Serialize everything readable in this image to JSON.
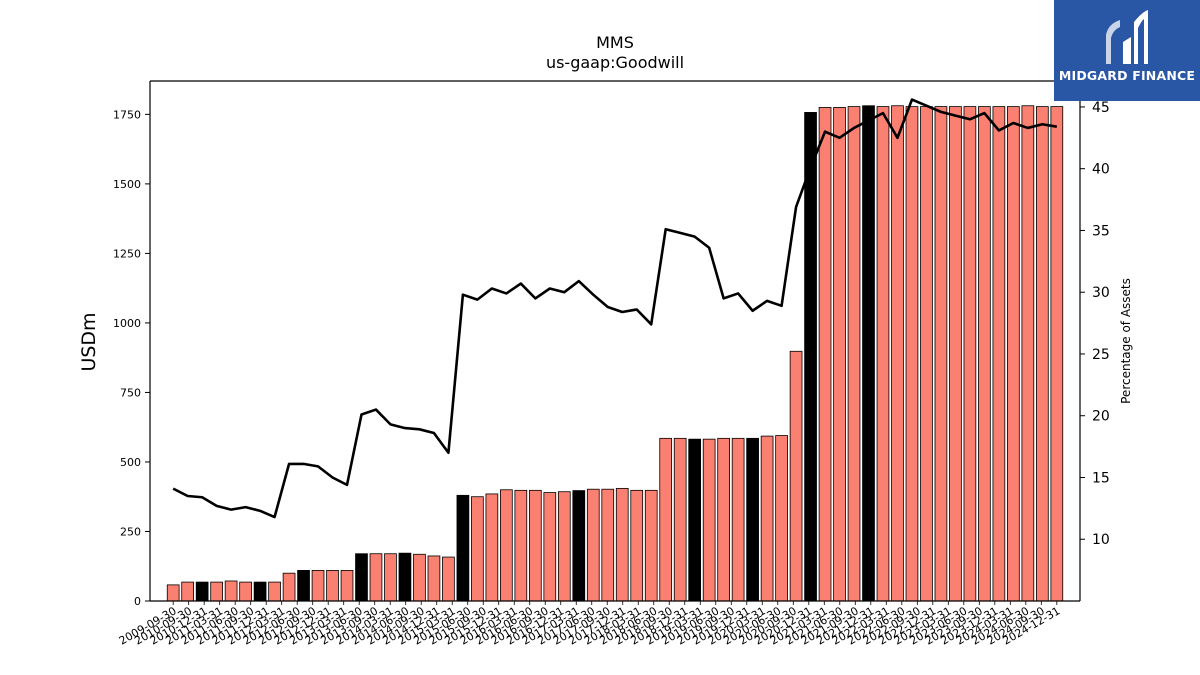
{
  "logo": {
    "text": "MIDGARD FINANCE",
    "bg_color": "#2a56a6"
  },
  "colors": {
    "bar_normal": "#fa8072",
    "bar_highlight": "#000000",
    "line": "#000000"
  },
  "chart_data": {
    "type": "bar",
    "title": "MMS",
    "subtitle": "us-gaap:Goodwill",
    "ylabel": "USDm",
    "y2label": "Percentage of Assets",
    "ylim": [
      0,
      1870
    ],
    "y2lim": [
      5.0,
      47.1
    ],
    "yticks": [
      0,
      250,
      500,
      750,
      1000,
      1250,
      1500,
      1750
    ],
    "y2ticks": [
      10,
      15,
      20,
      25,
      30,
      35,
      40,
      45
    ],
    "grid": false,
    "categories": [
      "2009-09-30",
      "2009-12-31",
      "2010-03-31",
      "2010-06-30",
      "2010-09-30",
      "2010-12-31",
      "2011-03-31",
      "2011-06-30",
      "2011-09-30",
      "2011-12-31",
      "2012-03-31",
      "2012-06-30",
      "2012-09-30",
      "2012-12-31",
      "2013-03-31",
      "2013-06-30",
      "2013-09-30",
      "2013-12-31",
      "2014-03-31",
      "2014-06-30",
      "2014-09-30",
      "2014-12-31",
      "2015-03-31",
      "2015-06-30",
      "2015-09-30",
      "2015-12-31",
      "2016-03-31",
      "2016-06-30",
      "2016-09-30",
      "2016-12-31",
      "2017-03-31",
      "2017-06-30",
      "2017-09-30",
      "2017-12-31",
      "2018-03-31",
      "2018-06-30",
      "2018-09-30",
      "2018-12-31",
      "2019-03-31",
      "2019-06-30",
      "2019-09-30",
      "2019-12-31",
      "2020-03-31",
      "2020-06-30",
      "2020-09-30",
      "2020-12-31",
      "2021-03-31",
      "2021-06-30",
      "2021-09-30",
      "2021-12-31",
      "2022-03-31",
      "2022-06-30",
      "2022-09-30",
      "2022-12-31",
      "2023-03-31",
      "2023-06-30",
      "2023-09-30",
      "2023-12-31",
      "2024-03-31",
      "2024-06-30",
      "2024-09-30",
      "2024-12-31"
    ],
    "xtick_labels": [
      "2009-09-30",
      "2010-09-30",
      "2010-12-31",
      "2011-03-31",
      "2011-06-30",
      "2011-09-30",
      "2011-12-31",
      "2012-03-31",
      "2012-06-30",
      "2012-09-30",
      "2012-12-31",
      "2013-03-31",
      "2013-06-30",
      "2013-09-30",
      "2014-03-31",
      "2014-06-30",
      "2014-09-30",
      "2014-12-31",
      "2015-03-31",
      "2015-06-30",
      "2015-09-30",
      "2015-12-31",
      "2016-03-31",
      "2016-06-30",
      "2016-09-30",
      "2016-12-31",
      "2017-03-31",
      "2017-06-30",
      "2017-09-30",
      "2017-12-31",
      "2018-03-31",
      "2018-06-30",
      "2018-09-30",
      "2018-12-31",
      "2019-03-31",
      "2019-06-30",
      "2019-09-30",
      "2019-12-31",
      "2020-03-31",
      "2020-06-30",
      "2020-09-30",
      "2020-12-31",
      "2021-03-31",
      "2021-06-30",
      "2021-09-30",
      "2021-12-31",
      "2022-03-31",
      "2022-06-30",
      "2022-09-30",
      "2022-12-31",
      "2023-03-31",
      "2023-06-30",
      "2023-09-30",
      "2023-12-31",
      "2024-03-31",
      "2024-06-30",
      "2024-09-30",
      "2024-12-31"
    ],
    "highlight": [
      false,
      false,
      true,
      false,
      false,
      false,
      true,
      false,
      false,
      true,
      false,
      false,
      false,
      true,
      false,
      false,
      true,
      false,
      false,
      false,
      true,
      false,
      false,
      false,
      false,
      false,
      false,
      false,
      true,
      false,
      false,
      false,
      false,
      false,
      false,
      false,
      true,
      false,
      false,
      false,
      true,
      false,
      false,
      false,
      true,
      false,
      false,
      false,
      true,
      false,
      false,
      false,
      false,
      false,
      false,
      false,
      false,
      false,
      false,
      false,
      false,
      false
    ],
    "series": [
      {
        "type": "bar",
        "axis": "left",
        "values": [
          58,
          68,
          68,
          68,
          72,
          68,
          68,
          68,
          100,
          110,
          110,
          110,
          110,
          170,
          170,
          170,
          172,
          168,
          162,
          158,
          380,
          375,
          385,
          400,
          398,
          398,
          390,
          393,
          397,
          402,
          402,
          405,
          398,
          398,
          585,
          585,
          582,
          582,
          585,
          585,
          585,
          593,
          595,
          898,
          1757,
          1775,
          1775,
          1778,
          1781,
          1778,
          1781,
          1778,
          1778,
          1778,
          1778,
          1778,
          1778,
          1778,
          1778,
          1781,
          1778,
          1778
        ]
      },
      {
        "type": "line",
        "axis": "right",
        "values": [
          14.1,
          13.5,
          13.4,
          12.7,
          12.4,
          12.6,
          12.3,
          11.8,
          16.1,
          16.1,
          15.9,
          15.0,
          14.4,
          20.1,
          20.5,
          19.3,
          19.0,
          18.9,
          18.6,
          17.0,
          29.8,
          29.4,
          30.3,
          29.9,
          30.7,
          29.5,
          30.3,
          30.0,
          30.9,
          29.8,
          28.8,
          28.4,
          28.6,
          27.4,
          35.1,
          34.8,
          34.5,
          33.6,
          29.5,
          29.9,
          28.5,
          29.3,
          28.9,
          36.9,
          40.1,
          43.0,
          42.5,
          43.3,
          43.9,
          44.5,
          42.5,
          45.6,
          45.1,
          44.6,
          44.3,
          44.0,
          44.5,
          43.1,
          43.7,
          43.3,
          43.6,
          43.4
        ]
      }
    ]
  }
}
